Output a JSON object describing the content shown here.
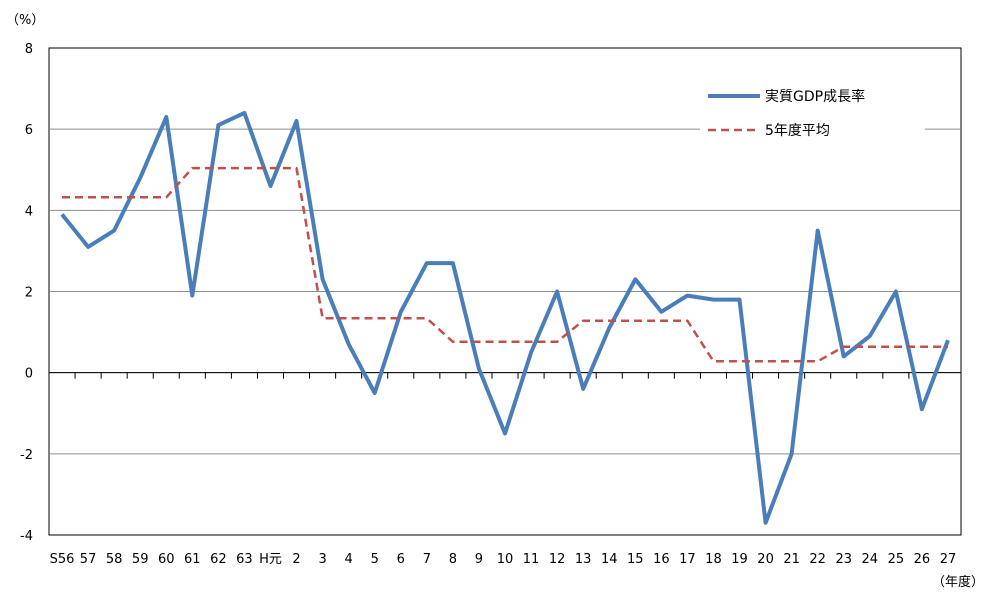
{
  "chart_data": {
    "type": "line",
    "y_unit_label": "（%）",
    "x_unit_label": "（年度）",
    "ylim": [
      -4,
      8
    ],
    "yticks": [
      -4,
      -2,
      0,
      2,
      4,
      6,
      8
    ],
    "grid": "horizontal",
    "legend_position": "top-right",
    "categories": [
      "S56",
      "57",
      "58",
      "59",
      "60",
      "61",
      "62",
      "63",
      "H元",
      "2",
      "3",
      "4",
      "5",
      "6",
      "7",
      "8",
      "9",
      "10",
      "11",
      "12",
      "13",
      "14",
      "15",
      "16",
      "17",
      "18",
      "19",
      "20",
      "21",
      "22",
      "23",
      "24",
      "25",
      "26",
      "27"
    ],
    "series": [
      {
        "name": "実質GDP成長率",
        "color": "#4a7ebb",
        "style": "solid",
        "values": [
          3.9,
          3.1,
          3.5,
          4.8,
          6.3,
          1.9,
          6.1,
          6.4,
          4.6,
          6.2,
          2.3,
          0.7,
          -0.5,
          1.5,
          2.7,
          2.7,
          0.1,
          -1.5,
          0.5,
          2.0,
          -0.4,
          1.1,
          2.3,
          1.5,
          1.9,
          1.8,
          1.8,
          -3.7,
          -2.0,
          3.5,
          0.4,
          0.9,
          2.0,
          -0.9,
          0.8
        ]
      },
      {
        "name": "5年度平均",
        "color": "#c0504d",
        "style": "dashed",
        "values": [
          4.32,
          4.32,
          4.32,
          4.32,
          4.32,
          5.04,
          5.04,
          5.04,
          5.04,
          5.04,
          1.34,
          1.34,
          1.34,
          1.34,
          1.34,
          0.76,
          0.76,
          0.76,
          0.76,
          0.76,
          1.28,
          1.28,
          1.28,
          1.28,
          1.28,
          0.28,
          0.28,
          0.28,
          0.28,
          0.28,
          0.64,
          0.64,
          0.64,
          0.64,
          0.64
        ]
      }
    ]
  }
}
